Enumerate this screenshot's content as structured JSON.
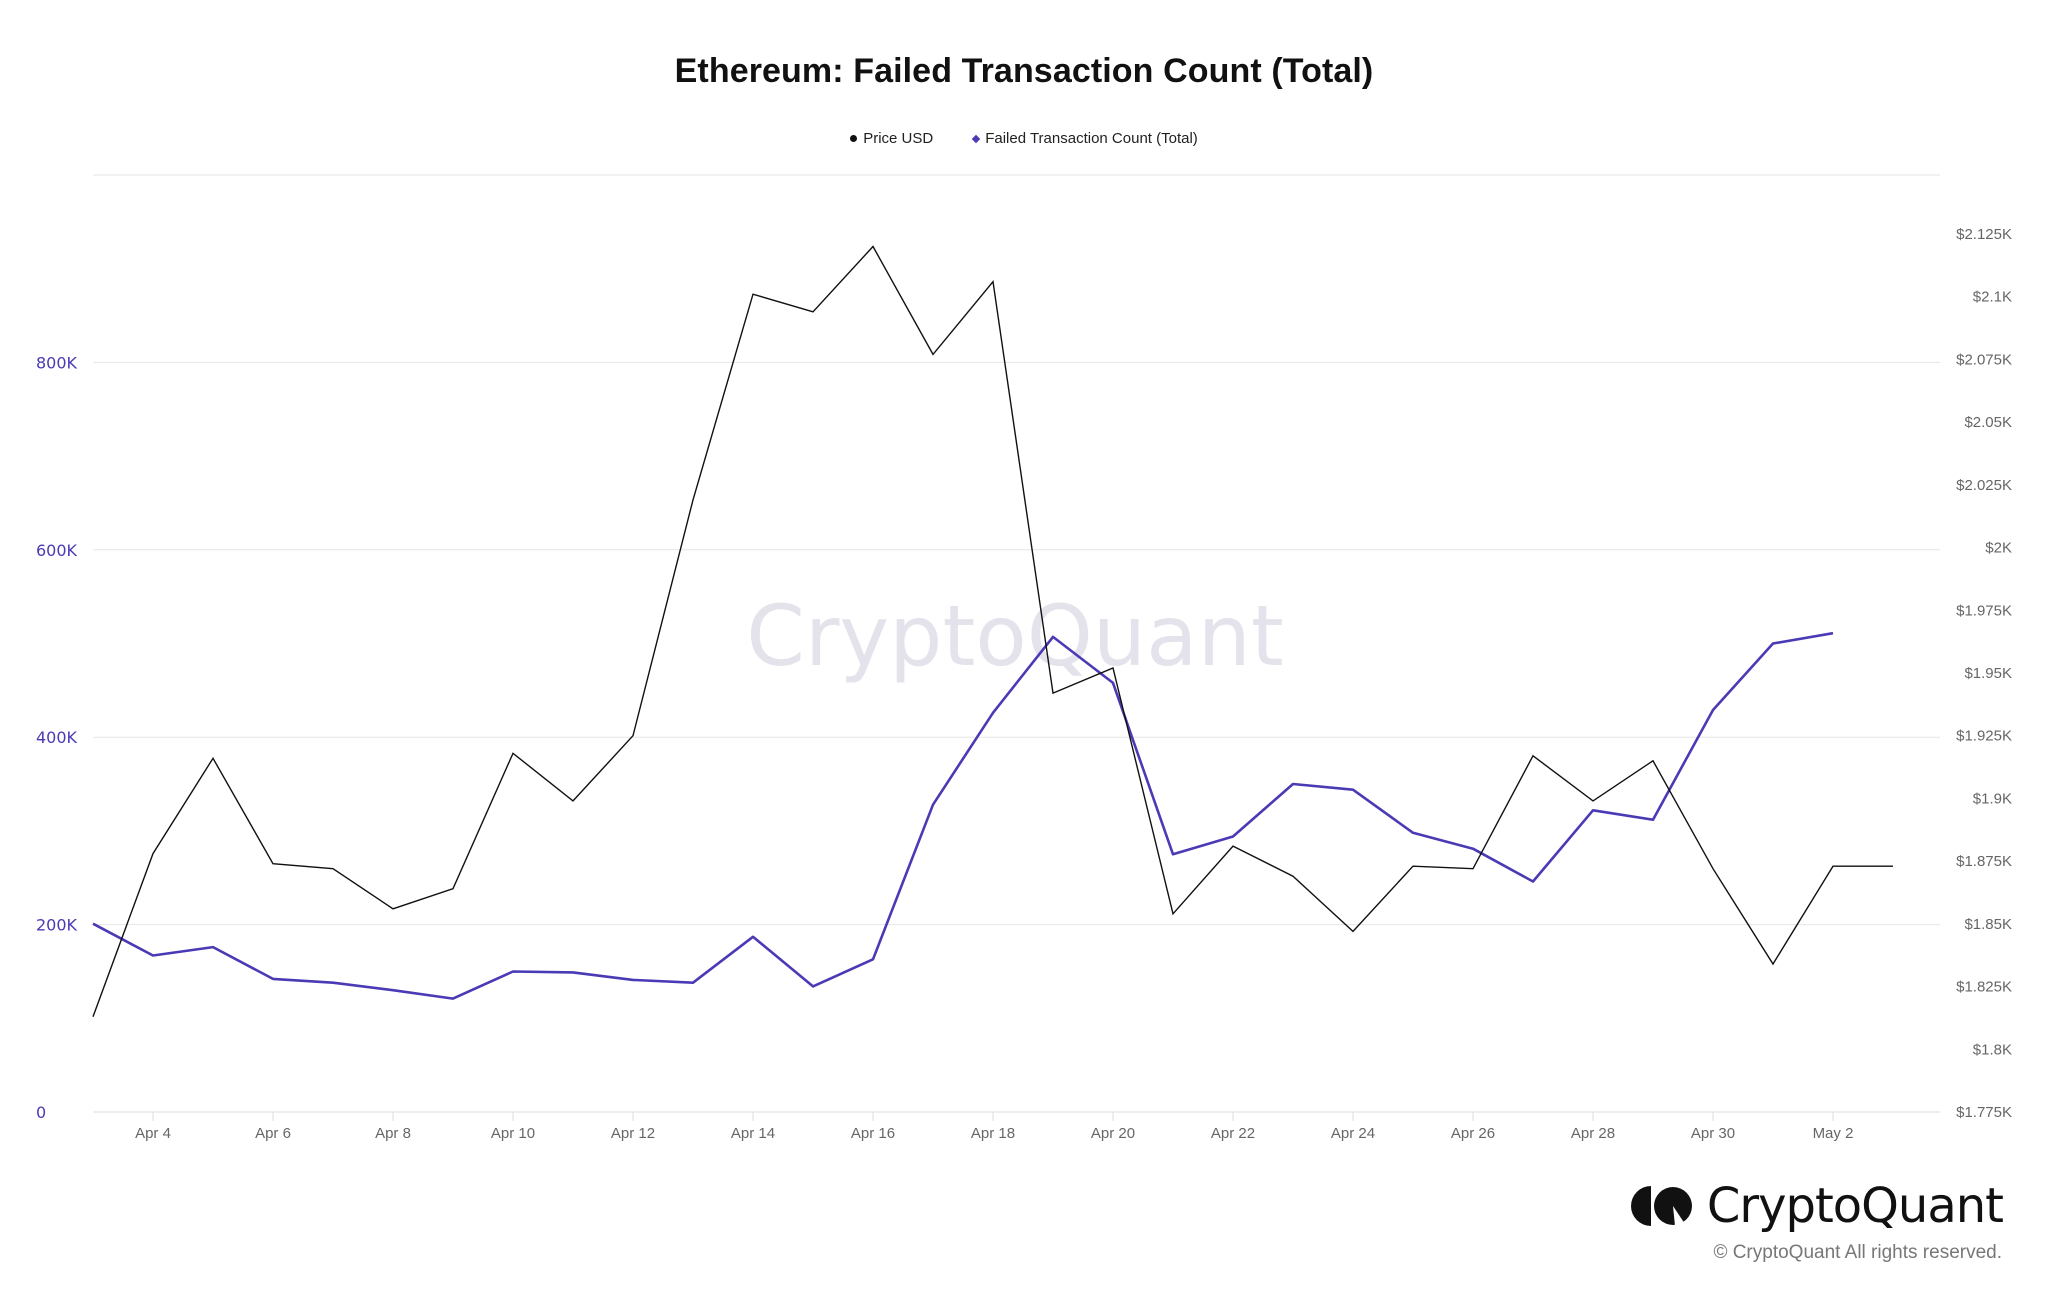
{
  "title": "Ethereum: Failed Transaction Count (Total)",
  "legend": [
    {
      "label": "Price USD",
      "marker": "dot",
      "color": "#111111"
    },
    {
      "label": "Failed Transaction Count (Total)",
      "marker": "diamond",
      "color": "#4a3ab5"
    }
  ],
  "watermark": "CryptoQuant",
  "brand": {
    "name": "CryptoQuant",
    "icon": "cryptoquant-logo-icon",
    "copyright": "© CryptoQuant All rights reserved."
  },
  "colors": {
    "price": "#111111",
    "failed_tx": "#4a3ab5",
    "grid": "#e6e6e6",
    "left_axis": "#4a3ab5",
    "right_axis": "#666666"
  },
  "chart_data": {
    "type": "line",
    "title": "Ethereum: Failed Transaction Count (Total)",
    "xlabel": "",
    "ylabel_left": "Failed Transaction Count (Total)",
    "ylabel_right": "Price USD",
    "grid": true,
    "legend_position": "top",
    "x": [
      "Apr 3",
      "Apr 4",
      "Apr 5",
      "Apr 6",
      "Apr 7",
      "Apr 8",
      "Apr 9",
      "Apr 10",
      "Apr 11",
      "Apr 12",
      "Apr 13",
      "Apr 14",
      "Apr 15",
      "Apr 16",
      "Apr 17",
      "Apr 18",
      "Apr 19",
      "Apr 20",
      "Apr 21",
      "Apr 22",
      "Apr 23",
      "Apr 24",
      "Apr 25",
      "Apr 26",
      "Apr 27",
      "Apr 28",
      "Apr 29",
      "Apr 30",
      "May 1",
      "May 2",
      "May 3"
    ],
    "x_tick_labels": [
      "Apr 4",
      "Apr 6",
      "Apr 8",
      "Apr 10",
      "Apr 12",
      "Apr 14",
      "Apr 16",
      "Apr 18",
      "Apr 20",
      "Apr 22",
      "Apr 24",
      "Apr 26",
      "Apr 28",
      "Apr 30",
      "May 2"
    ],
    "y_left_ticks": [
      "0",
      "200K",
      "400K",
      "600K",
      "800K"
    ],
    "y_left_range": [
      0,
      1000000
    ],
    "y_right_ticks": [
      "$1.775K",
      "$1.8K",
      "$1.825K",
      "$1.85K",
      "$1.875K",
      "$1.9K",
      "$1.925K",
      "$1.95K",
      "$1.975K",
      "$2K",
      "$2.025K",
      "$2.05K",
      "$2.075K",
      "$2.1K",
      "$2.125K"
    ],
    "y_right_range": [
      1775,
      2125
    ],
    "series": [
      {
        "name": "Price USD",
        "axis": "right",
        "color": "#111111",
        "values": [
          1813,
          1878,
          1916,
          1874,
          1872,
          1856,
          1864,
          1918,
          1899,
          1925,
          2019,
          2101,
          2094,
          2120,
          2077,
          2106,
          1942,
          1952,
          1854,
          1881,
          1869,
          1847,
          1873,
          1872,
          1917,
          1899,
          1915,
          1872,
          1834,
          1873,
          1873
        ]
      },
      {
        "name": "Failed Transaction Count (Total)",
        "axis": "left",
        "color": "#4a3ab5",
        "values": [
          201000,
          167000,
          176000,
          142000,
          138000,
          130000,
          121000,
          150000,
          149000,
          141000,
          138000,
          187000,
          134000,
          163000,
          328000,
          426000,
          507000,
          458000,
          275000,
          294000,
          350000,
          344000,
          298000,
          281000,
          246000,
          322000,
          312000,
          429000,
          500000,
          511000,
          null
        ]
      }
    ]
  }
}
